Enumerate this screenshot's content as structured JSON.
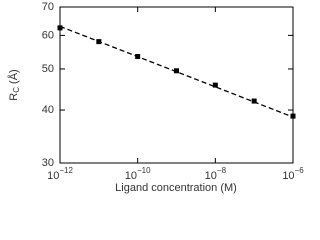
{
  "chart_data": {
    "type": "scatter",
    "x": [
      1e-12,
      1e-11,
      1e-10,
      1e-09,
      1e-08,
      1e-07,
      1e-06
    ],
    "values": [
      62.5,
      58,
      53.5,
      49.5,
      45.8,
      42,
      38.7
    ],
    "color": "#000000",
    "fit": {
      "x": [
        1e-12,
        1e-06
      ],
      "values": [
        63,
        38.5
      ],
      "color": "#000000",
      "dashed": true
    },
    "x_label": "Ligand concentration (M)",
    "y_label": {
      "text": "R",
      "subscript": "C",
      "unit": "(Å)"
    },
    "xlog": true,
    "ylog": true,
    "xlim": [
      1e-12,
      1e-06
    ],
    "xticks": [
      {
        "value": 1e-12,
        "label": "10",
        "exponent": "−12"
      },
      {
        "value": 1e-10,
        "label": "10",
        "exponent": "−10"
      },
      {
        "value": 1e-08,
        "label": "10",
        "exponent": "−8"
      },
      {
        "value": 1e-06,
        "label": "10",
        "exponent": "−6"
      }
    ],
    "ylim": [
      30,
      70
    ],
    "yticks": [
      30,
      40,
      50,
      60,
      70
    ]
  }
}
